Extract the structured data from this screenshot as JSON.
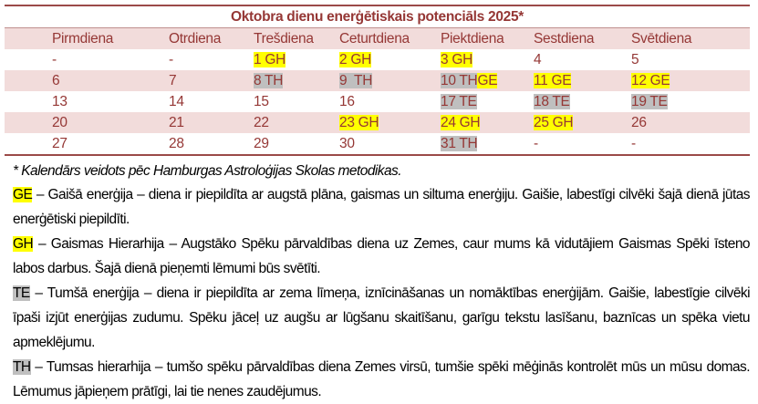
{
  "title": "Oktobra dienu enerģētiskais potenciāls 2025*",
  "colors": {
    "text": "#953735",
    "band": "#f2dcdb",
    "yellow": "#ffff00",
    "gray": "#bfbfbf"
  },
  "headers": [
    "Pirmdiena",
    "Otrdiena",
    "Trešdiena",
    "Ceturtdiena",
    "Piektdiena",
    "Sestdiena",
    "Svētdiena"
  ],
  "rows": [
    [
      [
        {
          "t": "-"
        }
      ],
      [
        {
          "t": "-"
        }
      ],
      [
        {
          "t": "1 GH",
          "h": "yellow"
        }
      ],
      [
        {
          "t": "2 GH",
          "h": "yellow"
        }
      ],
      [
        {
          "t": "3 GH",
          "h": "yellow"
        }
      ],
      [
        {
          "t": "4"
        }
      ],
      [
        {
          "t": "5"
        }
      ]
    ],
    [
      [
        {
          "t": "6"
        }
      ],
      [
        {
          "t": "7"
        }
      ],
      [
        {
          "t": "8 TH",
          "h": "gray"
        }
      ],
      [
        {
          "t": "9  TH",
          "h": "gray"
        }
      ],
      [
        {
          "t": "10 TH",
          "h": "gray"
        },
        {
          "t": "GE",
          "h": "yellow"
        }
      ],
      [
        {
          "t": "11 GE",
          "h": "yellow"
        }
      ],
      [
        {
          "t": "12 GE",
          "h": "yellow"
        }
      ]
    ],
    [
      [
        {
          "t": "13"
        }
      ],
      [
        {
          "t": "14"
        }
      ],
      [
        {
          "t": "15"
        }
      ],
      [
        {
          "t": "16"
        }
      ],
      [
        {
          "t": "17 TE",
          "h": "gray"
        }
      ],
      [
        {
          "t": "18 TE",
          "h": "gray"
        }
      ],
      [
        {
          "t": "19 TE",
          "h": "gray"
        }
      ]
    ],
    [
      [
        {
          "t": "20"
        }
      ],
      [
        {
          "t": "21"
        }
      ],
      [
        {
          "t": "22"
        }
      ],
      [
        {
          "t": "23 GH",
          "h": "yellow"
        }
      ],
      [
        {
          "t": "24 GH",
          "h": "yellow"
        }
      ],
      [
        {
          "t": "25 GH",
          "h": "yellow"
        }
      ],
      [
        {
          "t": "26"
        }
      ]
    ],
    [
      [
        {
          "t": "27"
        }
      ],
      [
        {
          "t": "28"
        }
      ],
      [
        {
          "t": "29"
        }
      ],
      [
        {
          "t": "30"
        }
      ],
      [
        {
          "t": "31 TH",
          "h": "gray"
        }
      ],
      [
        {
          "t": "-"
        }
      ],
      [
        {
          "t": "-"
        }
      ]
    ]
  ],
  "footnote": "* Kalendārs veidots pēc Hamburgas Astroloģijas Skolas metodikas.",
  "legend": [
    {
      "code": "GE",
      "h": "yellow",
      "text": " – Gaišā enerģija – diena ir piepildīta ar augstā plāna, gaismas un siltuma enerģiju. Gaišie, labestīgi cilvēki šajā dienā jūtas enerģētiski piepildīti."
    },
    {
      "code": "GH",
      "h": "yellow",
      "text": " – Gaismas Hierarhija – Augstāko Spēku pārvaldības diena uz Zemes, caur mums kā vidutājiem Gaismas Spēki īsteno labos darbus. Šajā dienā pieņemti lēmumi būs svētīti."
    },
    {
      "code": "TE",
      "h": "gray",
      "text": " – Tumšā enerģija – diena ir piepildīta ar zema līmeņa, iznīcināšanas un nomāktības enerģijām. Gaišie, labestīgie cilvēki īpaši izjūt enerģijas zudumu. Spēku jāceļ uz augšu ar lūgšanu skaitīšanu, garīgu tekstu lasīšanu, baznīcas un spēka vietu apmeklējumu."
    },
    {
      "code": "TH",
      "h": "gray",
      "text": " – Tumsas hierarhija – tumšo spēku pārvaldības diena Zemes virsū, tumšie spēki mēģinās kontrolēt mūs un mūsu domas.  Lēmumus jāpieņem prātīgi, lai tie nenes zaudējumus."
    }
  ]
}
